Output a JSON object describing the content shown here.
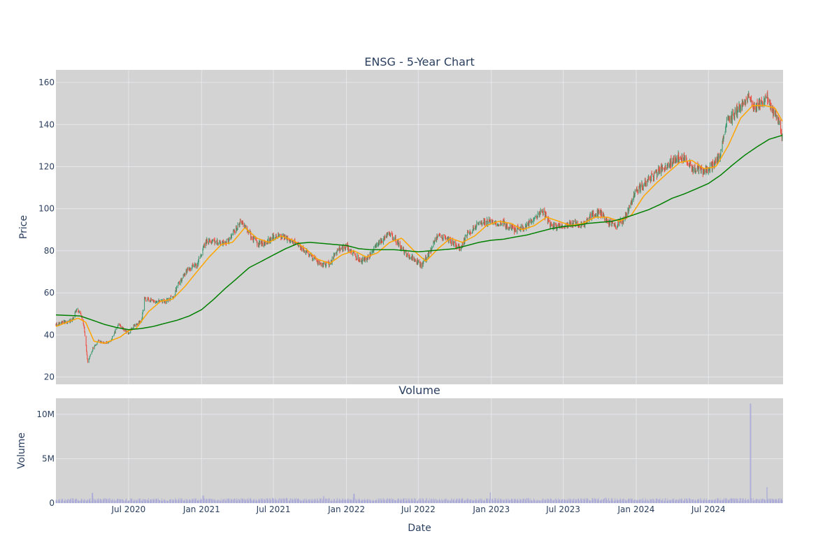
{
  "chart_data": {
    "type": "candlestick",
    "title": "ENSG - 5-Year Chart",
    "colors": {
      "background": "#d3d3d3",
      "increasing": "#3d9970",
      "decreasing": "#ef4b3f",
      "ma_short": "#ffa500",
      "ma_long": "#008000",
      "volume": "#a9a9d9",
      "grid": "#ebedf2",
      "text": "#2a3f5f"
    },
    "price_panel": {
      "ylabel": "Price",
      "yticks": [
        20,
        40,
        60,
        80,
        100,
        120,
        140,
        160
      ],
      "ylim": [
        16.5,
        166
      ],
      "grid": true
    },
    "volume_panel": {
      "title": "Volume",
      "ylabel": "Volume",
      "xlabel": "Date",
      "yticks": [
        {
          "v": 0,
          "label": "0"
        },
        {
          "v": 5000000,
          "label": "5M"
        },
        {
          "v": 10000000,
          "label": "10M"
        }
      ],
      "ylim": [
        0,
        11800000
      ],
      "grid": true
    },
    "x_range": [
      "2019-12-31",
      "2025-01-05"
    ],
    "x_ticks": [
      {
        "date": "2020-07-01",
        "label": "Jul 2020"
      },
      {
        "date": "2021-01-01",
        "label": "Jan 2021"
      },
      {
        "date": "2021-07-01",
        "label": "Jul 2021"
      },
      {
        "date": "2022-01-01",
        "label": "Jan 2022"
      },
      {
        "date": "2022-07-01",
        "label": "Jul 2022"
      },
      {
        "date": "2023-01-01",
        "label": "Jan 2023"
      },
      {
        "date": "2023-07-01",
        "label": "Jul 2023"
      },
      {
        "date": "2024-01-01",
        "label": "Jan 2024"
      },
      {
        "date": "2024-07-01",
        "label": "Jul 2024"
      }
    ],
    "close_anchors": [
      [
        "2019-12-31",
        45
      ],
      [
        "2020-01-20",
        46
      ],
      [
        "2020-02-10",
        47
      ],
      [
        "2020-02-21",
        52
      ],
      [
        "2020-03-03",
        50
      ],
      [
        "2020-03-12",
        42
      ],
      [
        "2020-03-20",
        27
      ],
      [
        "2020-04-03",
        34
      ],
      [
        "2020-04-15",
        37
      ],
      [
        "2020-05-01",
        36
      ],
      [
        "2020-05-20",
        38
      ],
      [
        "2020-06-05",
        45
      ],
      [
        "2020-06-20",
        42
      ],
      [
        "2020-07-01",
        41
      ],
      [
        "2020-07-15",
        44
      ],
      [
        "2020-08-03",
        47
      ],
      [
        "2020-08-10",
        57
      ],
      [
        "2020-09-01",
        56
      ],
      [
        "2020-10-01",
        56
      ],
      [
        "2020-10-20",
        58
      ],
      [
        "2020-11-10",
        66
      ],
      [
        "2020-12-01",
        72
      ],
      [
        "2020-12-20",
        73
      ],
      [
        "2021-01-10",
        84
      ],
      [
        "2021-02-01",
        85
      ],
      [
        "2021-03-01",
        83
      ],
      [
        "2021-03-20",
        88
      ],
      [
        "2021-04-10",
        94
      ],
      [
        "2021-05-01",
        88
      ],
      [
        "2021-05-20",
        84
      ],
      [
        "2021-06-10",
        83
      ],
      [
        "2021-07-01",
        87
      ],
      [
        "2021-08-01",
        86
      ],
      [
        "2021-09-01",
        83
      ],
      [
        "2021-10-01",
        78
      ],
      [
        "2021-11-01",
        73
      ],
      [
        "2021-11-20",
        74
      ],
      [
        "2021-12-10",
        80
      ],
      [
        "2022-01-01",
        82
      ],
      [
        "2022-02-01",
        76
      ],
      [
        "2022-02-20",
        75
      ],
      [
        "2022-03-10",
        81
      ],
      [
        "2022-04-01",
        85
      ],
      [
        "2022-04-20",
        88
      ],
      [
        "2022-05-10",
        84
      ],
      [
        "2022-06-01",
        78
      ],
      [
        "2022-06-20",
        76
      ],
      [
        "2022-07-10",
        73
      ],
      [
        "2022-08-01",
        80
      ],
      [
        "2022-08-20",
        88
      ],
      [
        "2022-09-10",
        86
      ],
      [
        "2022-10-01",
        83
      ],
      [
        "2022-10-15",
        81
      ],
      [
        "2022-11-01",
        88
      ],
      [
        "2022-12-01",
        93
      ],
      [
        "2023-01-01",
        94
      ],
      [
        "2023-02-01",
        93
      ],
      [
        "2023-03-01",
        90
      ],
      [
        "2023-04-01",
        92
      ],
      [
        "2023-05-10",
        99
      ],
      [
        "2023-06-01",
        92
      ],
      [
        "2023-07-01",
        91
      ],
      [
        "2023-08-01",
        93
      ],
      [
        "2023-08-20",
        92
      ],
      [
        "2023-09-10",
        97
      ],
      [
        "2023-10-01",
        98
      ],
      [
        "2023-10-20",
        94
      ],
      [
        "2023-11-10",
        92
      ],
      [
        "2023-12-01",
        95
      ],
      [
        "2024-01-01",
        108
      ],
      [
        "2024-02-01",
        114
      ],
      [
        "2024-03-01",
        118
      ],
      [
        "2024-04-01",
        122
      ],
      [
        "2024-04-20",
        125
      ],
      [
        "2024-05-10",
        123
      ],
      [
        "2024-05-25",
        119
      ],
      [
        "2024-06-20",
        118
      ],
      [
        "2024-07-15",
        121
      ],
      [
        "2024-08-01",
        126
      ],
      [
        "2024-08-15",
        141
      ],
      [
        "2024-09-10",
        146
      ],
      [
        "2024-09-25",
        150
      ],
      [
        "2024-10-10",
        152
      ],
      [
        "2024-10-25",
        148
      ],
      [
        "2024-11-10",
        150
      ],
      [
        "2024-11-25",
        155
      ],
      [
        "2024-12-05",
        147
      ],
      [
        "2024-12-20",
        145
      ],
      [
        "2025-01-03",
        133
      ]
    ],
    "ma_short_anchors": [
      [
        "2019-12-31",
        44
      ],
      [
        "2020-02-25",
        48
      ],
      [
        "2020-03-15",
        46
      ],
      [
        "2020-04-05",
        37
      ],
      [
        "2020-05-01",
        36
      ],
      [
        "2020-06-10",
        39
      ],
      [
        "2020-07-01",
        42
      ],
      [
        "2020-07-20",
        43
      ],
      [
        "2020-08-20",
        51
      ],
      [
        "2020-09-20",
        56
      ],
      [
        "2020-10-20",
        57
      ],
      [
        "2020-11-20",
        63
      ],
      [
        "2020-12-20",
        70
      ],
      [
        "2021-01-20",
        77
      ],
      [
        "2021-02-20",
        83
      ],
      [
        "2021-03-20",
        84
      ],
      [
        "2021-04-20",
        91
      ],
      [
        "2021-05-20",
        86
      ],
      [
        "2021-06-20",
        84
      ],
      [
        "2021-07-20",
        87
      ],
      [
        "2021-08-20",
        85
      ],
      [
        "2021-09-20",
        81
      ],
      [
        "2021-10-20",
        76
      ],
      [
        "2021-11-20",
        74
      ],
      [
        "2021-12-20",
        78
      ],
      [
        "2022-01-20",
        80
      ],
      [
        "2022-02-20",
        77
      ],
      [
        "2022-03-20",
        79
      ],
      [
        "2022-04-20",
        84
      ],
      [
        "2022-05-20",
        86
      ],
      [
        "2022-06-20",
        80
      ],
      [
        "2022-07-20",
        75
      ],
      [
        "2022-08-20",
        81
      ],
      [
        "2022-09-20",
        86
      ],
      [
        "2022-10-20",
        84
      ],
      [
        "2022-11-20",
        87
      ],
      [
        "2022-12-20",
        92
      ],
      [
        "2023-01-20",
        94
      ],
      [
        "2023-02-20",
        93
      ],
      [
        "2023-03-20",
        90
      ],
      [
        "2023-04-20",
        92
      ],
      [
        "2023-05-20",
        96
      ],
      [
        "2023-06-20",
        94
      ],
      [
        "2023-07-20",
        92
      ],
      [
        "2023-08-20",
        93
      ],
      [
        "2023-09-20",
        96
      ],
      [
        "2023-10-20",
        96
      ],
      [
        "2023-11-20",
        94
      ],
      [
        "2023-12-20",
        97
      ],
      [
        "2024-01-20",
        106
      ],
      [
        "2024-02-20",
        112
      ],
      [
        "2024-03-20",
        117
      ],
      [
        "2024-04-20",
        122
      ],
      [
        "2024-05-20",
        123
      ],
      [
        "2024-06-20",
        119
      ],
      [
        "2024-07-20",
        120
      ],
      [
        "2024-08-20",
        130
      ],
      [
        "2024-09-20",
        143
      ],
      [
        "2024-10-20",
        149
      ],
      [
        "2024-11-20",
        149
      ],
      [
        "2024-12-15",
        148
      ],
      [
        "2025-01-05",
        141
      ]
    ],
    "ma_long_anchors": [
      [
        "2019-12-31",
        49.5
      ],
      [
        "2020-03-01",
        49
      ],
      [
        "2020-04-01",
        47
      ],
      [
        "2020-05-01",
        45
      ],
      [
        "2020-06-01",
        43.5
      ],
      [
        "2020-07-01",
        42.5
      ],
      [
        "2020-08-01",
        43
      ],
      [
        "2020-09-01",
        44
      ],
      [
        "2020-10-01",
        45.5
      ],
      [
        "2020-11-01",
        47
      ],
      [
        "2020-12-01",
        49
      ],
      [
        "2021-01-01",
        52
      ],
      [
        "2021-02-01",
        57
      ],
      [
        "2021-03-01",
        62
      ],
      [
        "2021-04-01",
        67
      ],
      [
        "2021-05-01",
        72
      ],
      [
        "2021-06-01",
        75
      ],
      [
        "2021-07-01",
        78
      ],
      [
        "2021-08-01",
        81
      ],
      [
        "2021-09-01",
        83.5
      ],
      [
        "2021-10-01",
        84
      ],
      [
        "2021-11-01",
        83.5
      ],
      [
        "2021-12-01",
        83
      ],
      [
        "2022-01-01",
        82.5
      ],
      [
        "2022-02-01",
        81
      ],
      [
        "2022-03-01",
        80.5
      ],
      [
        "2022-04-01",
        80.5
      ],
      [
        "2022-05-01",
        80.5
      ],
      [
        "2022-06-01",
        80
      ],
      [
        "2022-07-01",
        79.5
      ],
      [
        "2022-08-01",
        80
      ],
      [
        "2022-09-01",
        80.5
      ],
      [
        "2022-10-01",
        81
      ],
      [
        "2022-11-01",
        82.5
      ],
      [
        "2022-12-01",
        84
      ],
      [
        "2023-01-01",
        85
      ],
      [
        "2023-02-01",
        85.5
      ],
      [
        "2023-03-01",
        86.5
      ],
      [
        "2023-04-01",
        87.5
      ],
      [
        "2023-05-01",
        89
      ],
      [
        "2023-06-01",
        90.5
      ],
      [
        "2023-07-01",
        91.5
      ],
      [
        "2023-08-01",
        92
      ],
      [
        "2023-09-01",
        93
      ],
      [
        "2023-10-01",
        93.5
      ],
      [
        "2023-11-01",
        94
      ],
      [
        "2023-12-01",
        95.5
      ],
      [
        "2024-01-01",
        97.5
      ],
      [
        "2024-02-01",
        99.5
      ],
      [
        "2024-03-01",
        102
      ],
      [
        "2024-04-01",
        105
      ],
      [
        "2024-05-01",
        107
      ],
      [
        "2024-06-01",
        109.5
      ],
      [
        "2024-07-01",
        112
      ],
      [
        "2024-08-01",
        116
      ],
      [
        "2024-09-01",
        121
      ],
      [
        "2024-10-01",
        125.5
      ],
      [
        "2024-11-01",
        129.5
      ],
      [
        "2024-12-01",
        133
      ],
      [
        "2025-01-05",
        135
      ]
    ],
    "volume_baseline": 400000,
    "volume_spikes": [
      [
        "2020-04-01",
        1150000
      ],
      [
        "2021-01-05",
        850000
      ],
      [
        "2021-11-05",
        800000
      ],
      [
        "2022-01-20",
        1050000
      ],
      [
        "2022-12-30",
        1200000
      ],
      [
        "2023-10-15",
        650000
      ],
      [
        "2024-10-15",
        11200000
      ],
      [
        "2024-11-25",
        1800000
      ]
    ]
  }
}
